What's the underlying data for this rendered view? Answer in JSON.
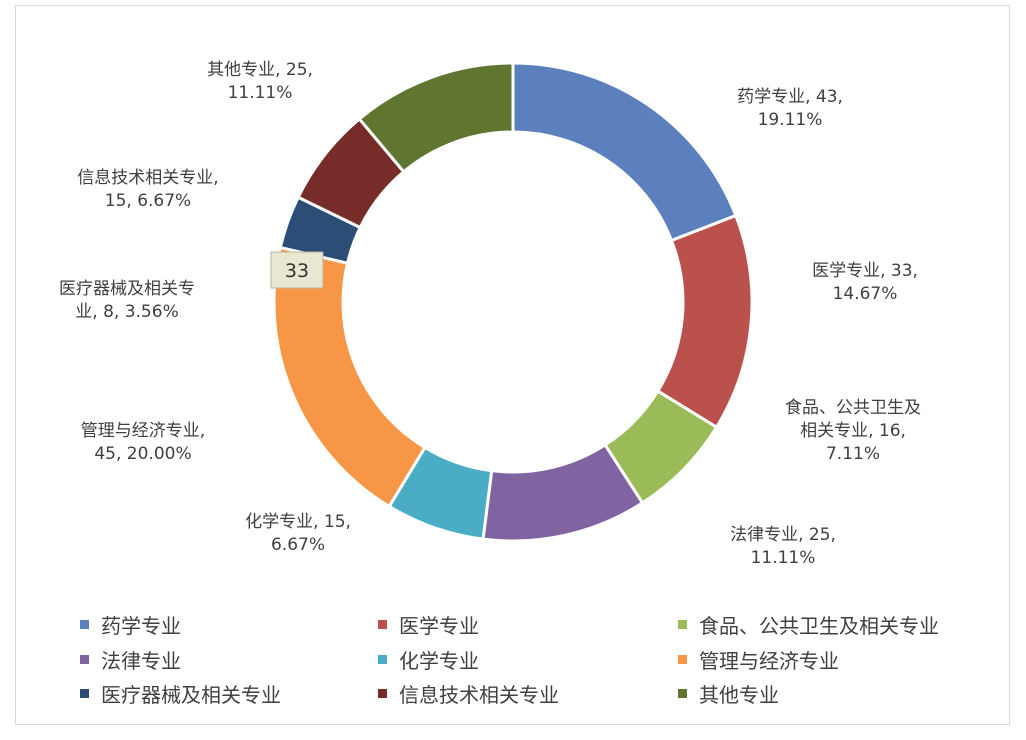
{
  "chart_data": {
    "type": "pie",
    "donut": true,
    "categories": [
      "药学专业",
      "医学专业",
      "食品、公共卫生及相关专业",
      "法律专业",
      "化学专业",
      "管理与经济专业",
      "医疗器械及相关专业",
      "信息技术相关专业",
      "其他专业"
    ],
    "values": [
      43,
      33,
      16,
      25,
      15,
      45,
      8,
      15,
      25
    ],
    "percents": [
      "19.11%",
      "14.67%",
      "7.11%",
      "11.11%",
      "6.67%",
      "20.00%",
      "3.56%",
      "6.67%",
      "11.11%"
    ],
    "colors": [
      "#5b80bd",
      "#bb514d",
      "#9bbb59",
      "#8064a2",
      "#4bacc6",
      "#f79646",
      "#2c4d75",
      "#772c2a",
      "#5f7530"
    ],
    "data_labels": [
      [
        "药学专业, 43,",
        "19.11%"
      ],
      [
        "医学专业, 33,",
        "14.67%"
      ],
      [
        "食品、公共卫生及",
        "相关专业, 16,",
        "7.11%"
      ],
      [
        "法律专业, 25,",
        "11.11%"
      ],
      [
        "化学专业, 15,",
        "6.67%"
      ],
      [
        "管理与经济专业,",
        "45, 20.00%"
      ],
      [
        "医疗器械及相关专",
        "业, 8, 3.56%"
      ],
      [
        "信息技术相关专业,",
        "15, 6.67%"
      ],
      [
        "其他专业, 25,",
        "11.11%"
      ]
    ],
    "legend_position": "bottom",
    "tooltip": "33"
  }
}
